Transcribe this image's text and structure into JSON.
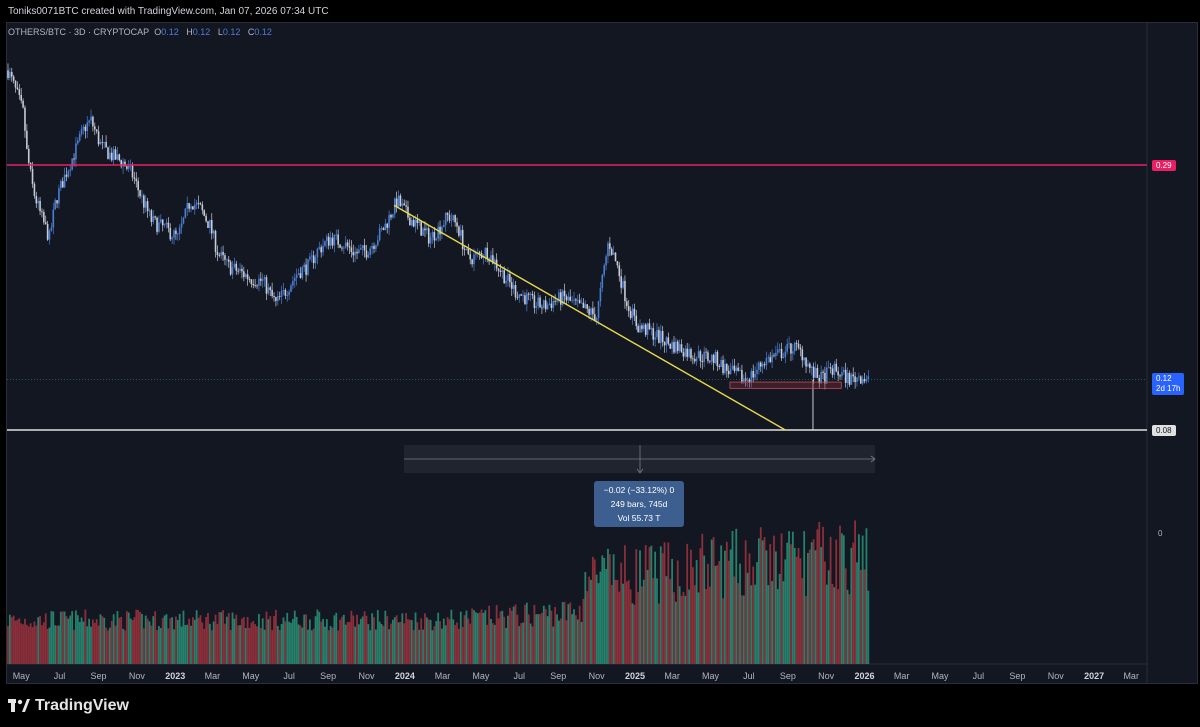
{
  "header": {
    "title": "Toniks0071BTC created with TradingView.com, Jan 07, 2026 07:34 UTC"
  },
  "symbol": {
    "name": "OTHERS/BTC · 3D · CRYPTOCAP",
    "o_label": "O",
    "o_value": "0.12",
    "h_label": "H",
    "h_value": "0.12",
    "l_label": "L",
    "l_value": "0.12",
    "c_label": "C",
    "c_value": "0.12"
  },
  "price_labels": {
    "resistance": "0.29",
    "current": "0.12",
    "countdown": "2d 17h",
    "support": "0.08",
    "volume_zero": "0"
  },
  "measure_tooltip": {
    "line1": "−0.02 (−33.12%) 0",
    "line2": "249 bars, 745d",
    "line3": "Vol 55.73 T"
  },
  "colors": {
    "background": "#131722",
    "resistance": "#e91e63",
    "trendline": "#e8d94a",
    "support": "#e0e0e0",
    "candle_up": "#4a7fd4",
    "candle_down": "#c8ccd6",
    "vol_up": "#26806b",
    "vol_down": "#8b2f3a"
  },
  "footer": {
    "brand": "TradingView"
  },
  "chart_data": {
    "type": "line",
    "symbol": "OTHERS/BTC",
    "interval": "3D",
    "x_tick_labels": [
      "May",
      "Jul",
      "Sep",
      "Nov",
      "2023",
      "Mar",
      "May",
      "Jul",
      "Sep",
      "Nov",
      "2024",
      "Mar",
      "May",
      "Jul",
      "Sep",
      "Nov",
      "2025",
      "Mar",
      "May",
      "Jul",
      "Sep",
      "Nov",
      "2026",
      "Mar",
      "May",
      "Jul",
      "Sep",
      "Nov",
      "2027",
      "Mar"
    ],
    "price_path": [
      [
        "2022-04-10",
        0.365
      ],
      [
        "2022-04-25",
        0.345
      ],
      [
        "2022-05-05",
        0.33
      ],
      [
        "2022-05-10",
        0.3
      ],
      [
        "2022-05-20",
        0.27
      ],
      [
        "2022-06-01",
        0.25
      ],
      [
        "2022-06-15",
        0.232
      ],
      [
        "2022-06-25",
        0.262
      ],
      [
        "2022-07-10",
        0.282
      ],
      [
        "2022-07-25",
        0.3
      ],
      [
        "2022-08-10",
        0.32
      ],
      [
        "2022-08-20",
        0.325
      ],
      [
        "2022-09-05",
        0.305
      ],
      [
        "2022-09-20",
        0.298
      ],
      [
        "2022-10-10",
        0.292
      ],
      [
        "2022-10-25",
        0.282
      ],
      [
        "2022-11-10",
        0.262
      ],
      [
        "2022-11-25",
        0.245
      ],
      [
        "2022-12-15",
        0.24
      ],
      [
        "2023-01-05",
        0.232
      ],
      [
        "2023-01-25",
        0.262
      ],
      [
        "2023-02-10",
        0.255
      ],
      [
        "2023-02-25",
        0.242
      ],
      [
        "2023-03-10",
        0.22
      ],
      [
        "2023-03-25",
        0.21
      ],
      [
        "2023-04-15",
        0.205
      ],
      [
        "2023-05-01",
        0.2
      ],
      [
        "2023-05-20",
        0.198
      ],
      [
        "2023-06-10",
        0.18
      ],
      [
        "2023-06-25",
        0.19
      ],
      [
        "2023-07-15",
        0.205
      ],
      [
        "2023-08-01",
        0.21
      ],
      [
        "2023-08-15",
        0.222
      ],
      [
        "2023-09-05",
        0.232
      ],
      [
        "2023-09-25",
        0.228
      ],
      [
        "2023-10-15",
        0.22
      ],
      [
        "2023-11-01",
        0.222
      ],
      [
        "2023-11-15",
        0.23
      ],
      [
        "2023-12-01",
        0.242
      ],
      [
        "2023-12-20",
        0.262
      ],
      [
        "2024-01-05",
        0.25
      ],
      [
        "2024-01-25",
        0.24
      ],
      [
        "2024-02-10",
        0.232
      ],
      [
        "2024-02-25",
        0.24
      ],
      [
        "2024-03-10",
        0.25
      ],
      [
        "2024-03-25",
        0.242
      ],
      [
        "2024-04-10",
        0.215
      ],
      [
        "2024-04-25",
        0.218
      ],
      [
        "2024-05-10",
        0.222
      ],
      [
        "2024-05-25",
        0.212
      ],
      [
        "2024-06-10",
        0.2
      ],
      [
        "2024-06-25",
        0.19
      ],
      [
        "2024-07-10",
        0.185
      ],
      [
        "2024-07-25",
        0.18
      ],
      [
        "2024-08-10",
        0.178
      ],
      [
        "2024-08-25",
        0.182
      ],
      [
        "2024-09-10",
        0.185
      ],
      [
        "2024-09-25",
        0.18
      ],
      [
        "2024-10-15",
        0.175
      ],
      [
        "2024-11-01",
        0.17
      ],
      [
        "2024-11-20",
        0.23
      ],
      [
        "2024-12-05",
        0.208
      ],
      [
        "2024-12-20",
        0.18
      ],
      [
        "2025-01-05",
        0.162
      ],
      [
        "2025-01-25",
        0.158
      ],
      [
        "2025-02-10",
        0.153
      ],
      [
        "2025-02-25",
        0.148
      ],
      [
        "2025-03-15",
        0.145
      ],
      [
        "2025-04-01",
        0.14
      ],
      [
        "2025-04-20",
        0.138
      ],
      [
        "2025-05-10",
        0.136
      ],
      [
        "2025-05-25",
        0.128
      ],
      [
        "2025-06-10",
        0.124
      ],
      [
        "2025-06-25",
        0.12
      ],
      [
        "2025-07-10",
        0.125
      ],
      [
        "2025-07-25",
        0.135
      ],
      [
        "2025-08-10",
        0.138
      ],
      [
        "2025-08-25",
        0.142
      ],
      [
        "2025-09-10",
        0.146
      ],
      [
        "2025-09-25",
        0.14
      ],
      [
        "2025-10-10",
        0.125
      ],
      [
        "2025-10-25",
        0.12
      ],
      [
        "2025-11-10",
        0.128
      ],
      [
        "2025-11-25",
        0.124
      ],
      [
        "2025-12-10",
        0.12
      ],
      [
        "2025-12-25",
        0.123
      ],
      [
        "2026-01-07",
        0.12
      ]
    ],
    "horizontal_lines": [
      {
        "value": 0.29,
        "color": "#e91e63"
      },
      {
        "value": 0.08,
        "color": "#e0e0e0"
      }
    ],
    "trendline": {
      "from": [
        "2023-12-15",
        0.258
      ],
      "to": [
        "2025-08-28",
        0.08
      ]
    },
    "support_box": {
      "x0": "2025-06-01",
      "x1": "2025-11-25",
      "y0": 0.113,
      "y1": 0.118
    },
    "wick_low": {
      "date": "2025-10-11",
      "value": 0.08
    },
    "ylabel": "",
    "xlabel": ""
  }
}
